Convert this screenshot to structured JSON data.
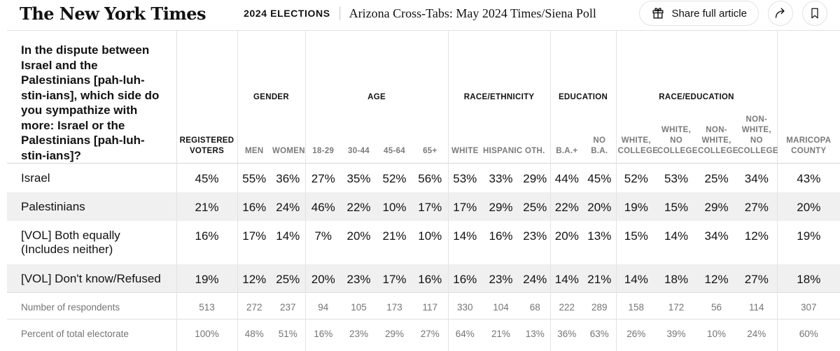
{
  "header": {
    "masthead": "The New York Times",
    "kicker": "2024 ELECTIONS",
    "title": "Arizona Cross-Tabs: May 2024 Times/Siena Poll",
    "share_button_label": "Share full article",
    "icons": {
      "gift": "gift-icon",
      "share": "share-arrow-icon",
      "bookmark": "bookmark-icon"
    },
    "colors": {
      "border": "#e2e2e2",
      "text": "#121212"
    }
  },
  "table": {
    "question": "In the dispute between Israel and the Palestinians [pah-luh-stin-ians], which side do you sympathize with more: Israel or the Palestinians [pah-luh-stin-ians]?",
    "groups": {
      "gender": "GENDER",
      "age": "AGE",
      "race_ethnicity": "RACE/ETHNICITY",
      "education": "EDUCATION",
      "race_education": "RACE/EDUCATION"
    },
    "columns": {
      "registered_voters": "REGISTERED VOTERS",
      "gender": [
        "MEN",
        "WOMEN"
      ],
      "age": [
        "18-29",
        "30-44",
        "45-64",
        "65+"
      ],
      "race_ethnicity": [
        "WHITE",
        "HISPANIC",
        "OTH."
      ],
      "education": [
        "B.A.+",
        "NO B.A."
      ],
      "race_education": [
        "WHITE, COLLEGE",
        "WHITE, NO COLLEGE",
        "NON-WHITE, COLLEGE",
        "NON-WHITE, NO COLLEGE"
      ],
      "maricopa": "MARICOPA COUNTY"
    },
    "rows": [
      {
        "label": "Israel",
        "striped": false,
        "muted": false,
        "topline": false,
        "values": [
          "45%",
          "55%",
          "36%",
          "27%",
          "35%",
          "52%",
          "56%",
          "53%",
          "33%",
          "29%",
          "44%",
          "45%",
          "52%",
          "53%",
          "25%",
          "34%",
          "43%"
        ]
      },
      {
        "label": "Palestinians",
        "striped": true,
        "muted": false,
        "topline": false,
        "values": [
          "21%",
          "16%",
          "24%",
          "46%",
          "22%",
          "10%",
          "17%",
          "17%",
          "29%",
          "25%",
          "22%",
          "20%",
          "19%",
          "15%",
          "29%",
          "27%",
          "20%"
        ]
      },
      {
        "label": "[VOL] Both equally (Includes neither)",
        "striped": false,
        "muted": false,
        "topline": false,
        "values": [
          "16%",
          "17%",
          "14%",
          "7%",
          "20%",
          "21%",
          "10%",
          "14%",
          "16%",
          "23%",
          "20%",
          "13%",
          "15%",
          "14%",
          "34%",
          "12%",
          "19%"
        ]
      },
      {
        "label": "[VOL] Don't know/Refused",
        "striped": true,
        "muted": false,
        "topline": false,
        "values": [
          "19%",
          "12%",
          "25%",
          "20%",
          "23%",
          "17%",
          "16%",
          "16%",
          "23%",
          "24%",
          "14%",
          "21%",
          "14%",
          "18%",
          "12%",
          "27%",
          "18%"
        ]
      },
      {
        "label": "Number of respondents",
        "striped": false,
        "muted": true,
        "topline": true,
        "values": [
          "513",
          "272",
          "237",
          "94",
          "105",
          "173",
          "117",
          "330",
          "104",
          "68",
          "222",
          "289",
          "158",
          "172",
          "56",
          "114",
          "307"
        ]
      },
      {
        "label": "Percent of total electorate",
        "striped": false,
        "muted": true,
        "topline": true,
        "values": [
          "100%",
          "48%",
          "51%",
          "16%",
          "23%",
          "29%",
          "27%",
          "64%",
          "21%",
          "13%",
          "36%",
          "63%",
          "26%",
          "39%",
          "10%",
          "24%",
          "60%"
        ]
      }
    ],
    "stripe_color": "#f0f0f0"
  }
}
